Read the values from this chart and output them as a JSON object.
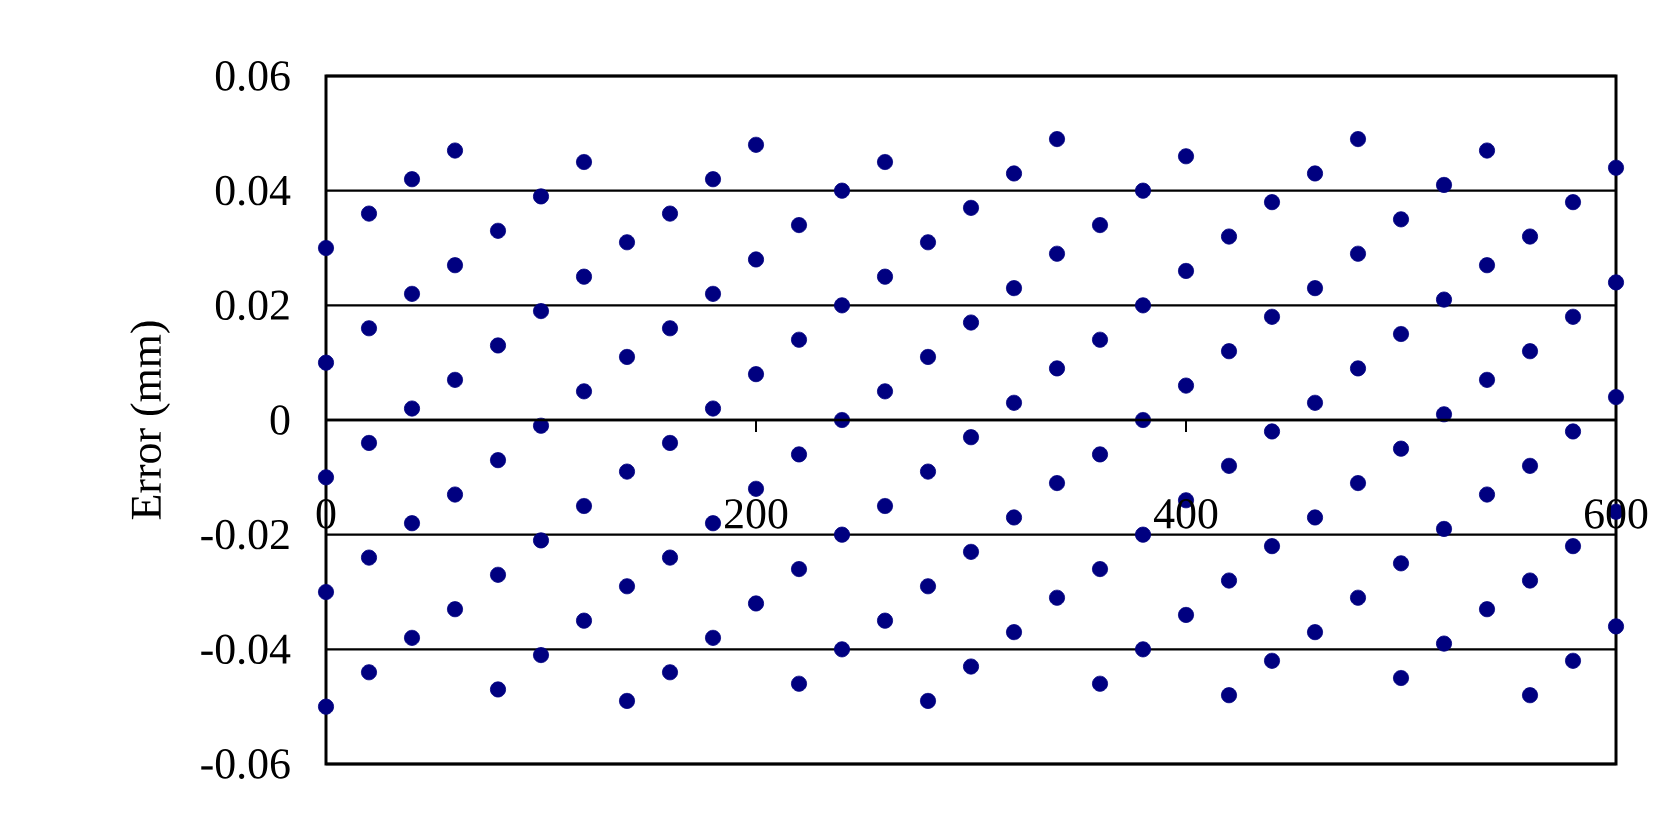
{
  "chart_data": {
    "type": "scatter",
    "ylabel": "Error (mm)",
    "color": "#000080",
    "grid": "y",
    "xlim": [
      0,
      600
    ],
    "xticks": [
      0,
      200,
      400,
      600
    ],
    "ylim": [
      -0.06,
      0.06
    ],
    "yticks": [
      -0.06,
      -0.04,
      -0.02,
      0,
      0.02,
      0.04,
      0.06
    ],
    "x": [
      0,
      0,
      0,
      0,
      0,
      20,
      20,
      20,
      20,
      20,
      40,
      40,
      40,
      40,
      40,
      60,
      60,
      60,
      60,
      60,
      80,
      80,
      80,
      80,
      80,
      100,
      100,
      100,
      100,
      100,
      120,
      120,
      120,
      120,
      120,
      140,
      140,
      140,
      140,
      140,
      160,
      160,
      160,
      160,
      160,
      180,
      180,
      180,
      180,
      180,
      200,
      200,
      200,
      200,
      200,
      220,
      220,
      220,
      220,
      220,
      240,
      240,
      240,
      240,
      240,
      260,
      260,
      260,
      260,
      260,
      280,
      280,
      280,
      280,
      280,
      300,
      300,
      300,
      300,
      300,
      320,
      320,
      320,
      320,
      320,
      340,
      340,
      340,
      340,
      340,
      360,
      360,
      360,
      360,
      360,
      380,
      380,
      380,
      380,
      380,
      400,
      400,
      400,
      400,
      400,
      420,
      420,
      420,
      420,
      420,
      440,
      440,
      440,
      440,
      440,
      460,
      460,
      460,
      460,
      460,
      480,
      480,
      480,
      480,
      480,
      500,
      500,
      500,
      500,
      500,
      520,
      520,
      520,
      520,
      520,
      540,
      540,
      540,
      540,
      540,
      560,
      560,
      560,
      560,
      560,
      580,
      580,
      580,
      580,
      580,
      600,
      600,
      600,
      600,
      600
    ],
    "values": [
      -0.05,
      -0.03,
      -0.01,
      0.01,
      0.03,
      -0.044,
      -0.024,
      -0.004,
      0.016,
      0.036,
      -0.038,
      -0.018,
      0.002,
      0.022,
      0.042,
      -0.033,
      -0.013,
      0.007,
      0.027,
      0.047,
      -0.047,
      -0.027,
      -0.007,
      0.013,
      0.033,
      -0.041,
      -0.021,
      -0.001,
      0.019,
      0.039,
      -0.035,
      -0.015,
      0.005,
      0.025,
      0.045,
      -0.049,
      -0.029,
      -0.009,
      0.011,
      0.031,
      -0.044,
      -0.024,
      -0.004,
      0.016,
      0.036,
      -0.038,
      -0.018,
      0.002,
      0.022,
      0.042,
      -0.032,
      -0.012,
      0.008,
      0.028,
      0.048,
      -0.046,
      -0.026,
      -0.006,
      0.014,
      0.034,
      -0.04,
      -0.02,
      0.0,
      0.02,
      0.04,
      -0.035,
      -0.015,
      0.005,
      0.025,
      0.045,
      -0.049,
      -0.029,
      -0.009,
      0.011,
      0.031,
      -0.043,
      -0.023,
      -0.003,
      0.017,
      0.037,
      -0.037,
      -0.017,
      0.003,
      0.023,
      0.043,
      -0.031,
      -0.011,
      0.009,
      0.029,
      0.049,
      -0.046,
      -0.026,
      -0.006,
      0.014,
      0.034,
      -0.04,
      -0.02,
      0.0,
      0.02,
      0.04,
      -0.034,
      -0.014,
      0.006,
      0.026,
      0.046,
      -0.048,
      -0.028,
      -0.008,
      0.012,
      0.032,
      -0.042,
      -0.022,
      -0.002,
      0.018,
      0.038,
      -0.037,
      -0.017,
      0.003,
      0.023,
      0.043,
      -0.031,
      -0.011,
      0.009,
      0.029,
      0.049,
      -0.045,
      -0.025,
      -0.005,
      0.015,
      0.035,
      -0.039,
      -0.019,
      0.001,
      0.021,
      0.041,
      -0.033,
      -0.013,
      0.007,
      0.027,
      0.047,
      -0.048,
      -0.028,
      -0.008,
      0.012,
      0.032,
      -0.042,
      -0.022,
      -0.002,
      0.018,
      0.038,
      -0.036,
      -0.016,
      0.004,
      0.024,
      0.044
    ]
  }
}
